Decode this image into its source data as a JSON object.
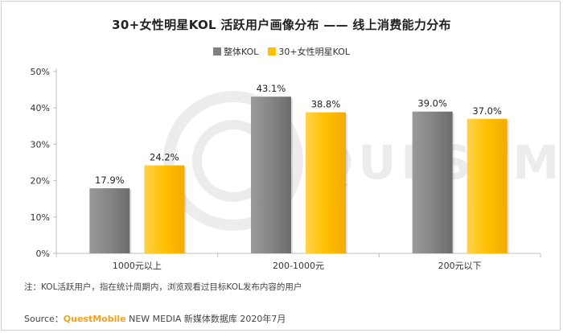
{
  "title": "30+女性明星KOL 活跃用户画像分布 —— 线上消费能力分布",
  "legend": [
    {
      "label": "整体KOL",
      "color": "#808080"
    },
    {
      "label": "30+女性明星KOL",
      "color": "#ffc000"
    }
  ],
  "chart_data": {
    "type": "bar",
    "title": "30+女性明星KOL 活跃用户画像分布 —— 线上消费能力分布",
    "categories": [
      "1000元以上",
      "200-1000元",
      "200元以下"
    ],
    "series": [
      {
        "name": "整体KOL",
        "values": [
          17.9,
          43.1,
          39.0
        ],
        "color": "#808080"
      },
      {
        "name": "30+女性明星KOL",
        "values": [
          24.2,
          38.8,
          37.0
        ],
        "color": "#ffc000"
      }
    ],
    "value_labels": [
      [
        "17.9%",
        "43.1%",
        "39.0%"
      ],
      [
        "24.2%",
        "38.8%",
        "37.0%"
      ]
    ],
    "yticks": [
      "0%",
      "10%",
      "20%",
      "30%",
      "40%",
      "50%"
    ],
    "ylim": [
      0,
      50
    ],
    "grid": false,
    "legend_position": "top-center"
  },
  "watermark": "QUESTMOBILE",
  "note": "注：KOL活跃用户，指在统计周期内，浏览观看过目标KOL发布内容的用户",
  "source": {
    "prefix": "Source：",
    "brand": "QuestMobile",
    "rest": " NEW MEDIA 新媒体数据库 2020年7月"
  }
}
